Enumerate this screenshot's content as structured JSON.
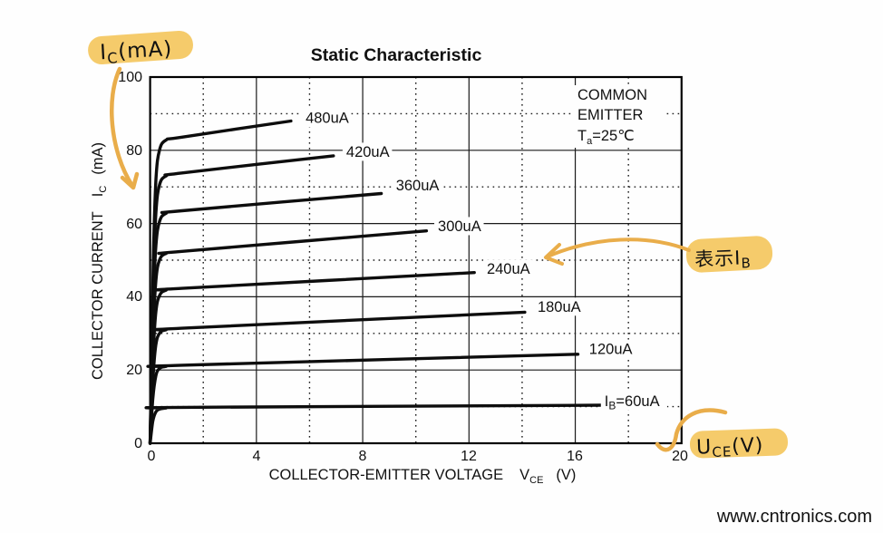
{
  "chart_data": {
    "type": "line",
    "title": "Static Characteristic",
    "xlabel": {
      "text": "COLLECTOR-EMITTER VOLTAGE",
      "symbol": "V",
      "sub": "CE",
      "unit": "(V)"
    },
    "ylabel": {
      "text": "COLLECTOR CURRENT",
      "symbol": "I",
      "sub": "C",
      "unit": "(mA)"
    },
    "xlim": [
      0,
      20
    ],
    "ylim": [
      0,
      100
    ],
    "x_ticks": [
      "0",
      "4",
      "8",
      "12",
      "16",
      "20"
    ],
    "y_ticks": [
      "0",
      "20",
      "40",
      "60",
      "80",
      "100"
    ],
    "x_major_step": 4,
    "x_minor_step": 2,
    "y_major_step": 20,
    "y_minor_step": 10,
    "grid": {
      "major": "solid",
      "minor": "dotted"
    },
    "condition_note": {
      "line1": "COMMON",
      "line2": "EMITTER",
      "temp_pre": "T",
      "temp_sub": "a",
      "temp_post": "=25℃"
    },
    "series": [
      {
        "name": "IB=480uA",
        "label": {
          "pre": "480uA",
          "sub": "",
          "post": ""
        },
        "label_pos": [
          5.85,
          88.8
        ],
        "points": [
          [
            0,
            0
          ],
          [
            0.12,
            50
          ],
          [
            0.22,
            72
          ],
          [
            0.35,
            80
          ],
          [
            0.6,
            82.8
          ],
          [
            1.2,
            83.6
          ],
          [
            5.3,
            88
          ]
        ]
      },
      {
        "name": "IB=420uA",
        "label": {
          "pre": "420uA",
          "sub": "",
          "post": ""
        },
        "label_pos": [
          7.38,
          79.6
        ],
        "points": [
          [
            0,
            0
          ],
          [
            0.12,
            44
          ],
          [
            0.22,
            63
          ],
          [
            0.35,
            70.5
          ],
          [
            0.6,
            73
          ],
          [
            1.2,
            73.8
          ],
          [
            6.9,
            78.5
          ]
        ]
      },
      {
        "name": "IB=360uA",
        "label": {
          "pre": "360uA",
          "sub": "",
          "post": ""
        },
        "label_pos": [
          9.25,
          70.4
        ],
        "points": [
          [
            0,
            0
          ],
          [
            0.12,
            38
          ],
          [
            0.22,
            54
          ],
          [
            0.35,
            60.5
          ],
          [
            0.6,
            62.8
          ],
          [
            1.2,
            63.5
          ],
          [
            8.7,
            68.2
          ]
        ]
      },
      {
        "name": "IB=300uA",
        "label": {
          "pre": "300uA",
          "sub": "",
          "post": ""
        },
        "label_pos": [
          10.83,
          59.3
        ],
        "points": [
          [
            0,
            0
          ],
          [
            0.12,
            31
          ],
          [
            0.22,
            44.5
          ],
          [
            0.35,
            50
          ],
          [
            0.6,
            51.8
          ],
          [
            1.2,
            52.4
          ],
          [
            10.4,
            58
          ]
        ]
      },
      {
        "name": "IB=240uA",
        "label": {
          "pre": "240uA",
          "sub": "",
          "post": ""
        },
        "label_pos": [
          12.67,
          47.7
        ],
        "points": [
          [
            0,
            0
          ],
          [
            0.12,
            25
          ],
          [
            0.22,
            36
          ],
          [
            0.35,
            40.3
          ],
          [
            0.6,
            41.8
          ],
          [
            1.2,
            42.3
          ],
          [
            12.2,
            46.6
          ]
        ]
      },
      {
        "name": "IB=180uA",
        "label": {
          "pre": "180uA",
          "sub": "",
          "post": ""
        },
        "label_pos": [
          14.58,
          37.3
        ],
        "points": [
          [
            0,
            0
          ],
          [
            0.12,
            19
          ],
          [
            0.22,
            27
          ],
          [
            0.35,
            30
          ],
          [
            0.6,
            31
          ],
          [
            1.2,
            31.4
          ],
          [
            14.1,
            35.8
          ]
        ]
      },
      {
        "name": "IB=120uA",
        "label": {
          "pre": "120uA",
          "sub": "",
          "post": ""
        },
        "label_pos": [
          16.52,
          25.8
        ],
        "points": [
          [
            0,
            0
          ],
          [
            0.1,
            12
          ],
          [
            0.22,
            18.5
          ],
          [
            0.35,
            20.4
          ],
          [
            0.6,
            21
          ],
          [
            1.2,
            21.3
          ],
          [
            16.1,
            24.3
          ]
        ]
      },
      {
        "name": "IB=60uA",
        "label": {
          "pre": "I",
          "sub": "B",
          "post": "=60uA"
        },
        "label_pos": [
          17.1,
          11.5
        ],
        "points": [
          [
            0,
            0
          ],
          [
            0.1,
            6
          ],
          [
            0.22,
            8.6
          ],
          [
            0.35,
            9.3
          ],
          [
            0.6,
            9.6
          ],
          [
            1.2,
            9.8
          ],
          [
            17.0,
            10.4
          ]
        ]
      }
    ]
  },
  "annotations": {
    "ic": {
      "pre": "I",
      "sub": "C",
      "post": "(mA)"
    },
    "ib": {
      "pre": "表示I",
      "sub": "B",
      "post": ""
    },
    "uce": {
      "pre": "U",
      "sub": "CE",
      "post": "(V)"
    }
  },
  "watermark": "www.cntronics.com",
  "colors": {
    "curve": "#0d0d0d",
    "grid": "#1a1a1a",
    "marker_ink": "#5f584a",
    "marker_orange": "#E9AD4A",
    "marker_highlight": "#F4C863",
    "watermark": "#CFE3C8"
  }
}
